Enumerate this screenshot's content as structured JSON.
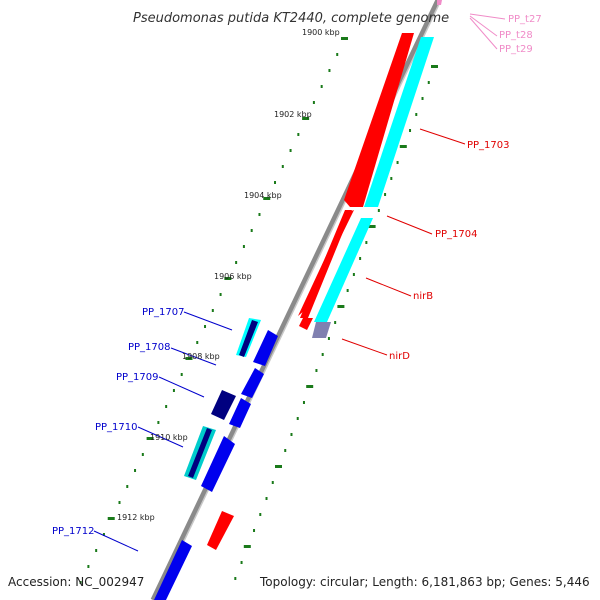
{
  "title": "Pseudomonas putida KT2440, complete genome",
  "footer": {
    "accession": "Accession: NC_002947",
    "topology": "Topology: circular; Length: 6,181,863 bp; Genes: 5,446"
  },
  "scale_labels": [
    "1900 kbp",
    "1902 kbp",
    "1904 kbp",
    "1906 kbp",
    "1908 kbp",
    "1910 kbp",
    "1912 kbp"
  ],
  "gene_labels": [
    {
      "name": "PP_t27",
      "color": "#f08cc8"
    },
    {
      "name": "PP_t28",
      "color": "#f08cc8"
    },
    {
      "name": "PP_t29",
      "color": "#f08cc8"
    },
    {
      "name": "PP_1703",
      "color": "#e00000"
    },
    {
      "name": "PP_1704",
      "color": "#e00000"
    },
    {
      "name": "nirB",
      "color": "#e00000"
    },
    {
      "name": "nirD",
      "color": "#e00000"
    },
    {
      "name": "PP_1707",
      "color": "#0000cc"
    },
    {
      "name": "PP_1708",
      "color": "#0000cc"
    },
    {
      "name": "PP_1709",
      "color": "#0000cc"
    },
    {
      "name": "PP_1710",
      "color": "#0000cc"
    },
    {
      "name": "PP_1712",
      "color": "#0000cc"
    }
  ],
  "colors": {
    "backbone": "#8a8a8a",
    "forward_gene": "#ff0000",
    "reverse_gene": "#0000ee",
    "cds": "#00ffff",
    "dark_cds": "#000080",
    "tick": "#1a7a1a",
    "trna": "#f08cc8"
  }
}
